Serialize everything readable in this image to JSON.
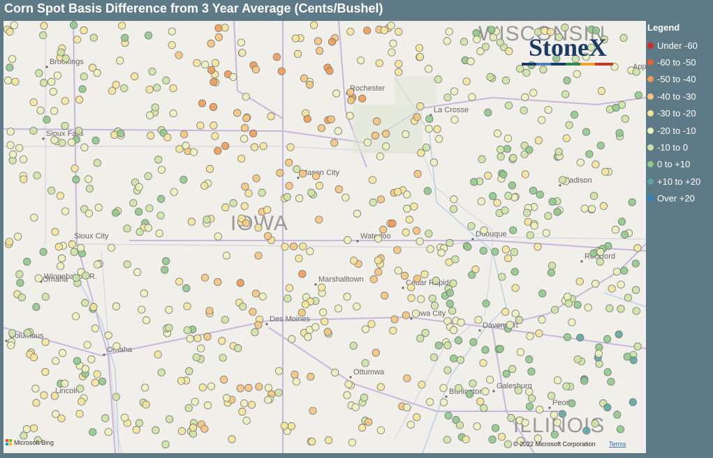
{
  "title": "Corn Spot Basis Difference from 3 Year Average (Cents/Bushel)",
  "legend": {
    "title": "Legend",
    "items": [
      {
        "label": "Under -60",
        "color": "#d42a2a"
      },
      {
        "label": "-60 to -50",
        "color": "#e5603b"
      },
      {
        "label": "-50 to -40",
        "color": "#ee9a56"
      },
      {
        "label": "-40 to -30",
        "color": "#f5c57d"
      },
      {
        "label": "-30 to -20",
        "color": "#f5e49a"
      },
      {
        "label": "-20 to -10",
        "color": "#edf2bb"
      },
      {
        "label": "-10 to 0",
        "color": "#cde4a3"
      },
      {
        "label": "0 to +10",
        "color": "#8fc989"
      },
      {
        "label": "+10 to +20",
        "color": "#5ea6a3"
      },
      {
        "label": "Over +20",
        "color": "#2f7fc1"
      }
    ]
  },
  "map": {
    "states": [
      "WISCONSIN",
      "IOWA",
      "ILLINOIS"
    ],
    "cities": [
      "Brookings",
      "Sioux Falls",
      "Sioux City",
      "Winnebago I.R.",
      "Omaha",
      "Columbus",
      "Omaha",
      "Lincoln",
      "Rochester",
      "La Crosse",
      "Mason City",
      "Waterloo",
      "Dubuque",
      "Marshalltown",
      "Cedar Rapids",
      "Des Moines",
      "Iowa City",
      "Davenport",
      "Ottumwa",
      "Burlington",
      "Galesburg",
      "Peoria",
      "Madison",
      "Rockford",
      "Appleton"
    ]
  },
  "logo": "StoneX",
  "attribution": {
    "provider": "Microsoft Bing",
    "copyright": "© 2022 Microsoft Corporation",
    "terms": "Terms"
  }
}
